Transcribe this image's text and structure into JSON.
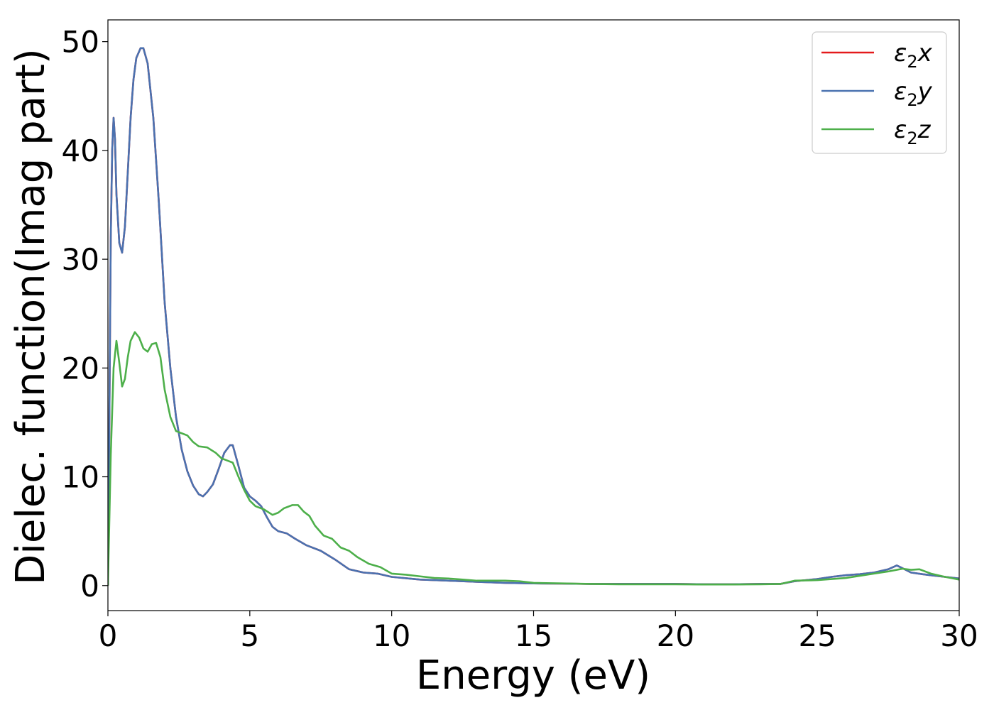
{
  "chart_data": {
    "type": "line",
    "xlabel": "Energy (eV)",
    "ylabel": "Dielec. function(Imag part)",
    "xlim": [
      0,
      30
    ],
    "ylim": [
      -2.3,
      52
    ],
    "x_ticks": [
      0,
      5,
      10,
      15,
      20,
      25,
      30
    ],
    "y_ticks": [
      0,
      10,
      20,
      30,
      40,
      50
    ],
    "grid": false,
    "legend_position": "top-right",
    "series": [
      {
        "name": "ε2x",
        "legend_base": "ε",
        "legend_sub": "2",
        "legend_var": "x",
        "color": "#e41a1c",
        "points": [
          [
            0,
            0
          ],
          [
            0.05,
            15
          ],
          [
            0.1,
            32
          ],
          [
            0.15,
            40
          ],
          [
            0.2,
            43
          ],
          [
            0.25,
            41
          ],
          [
            0.3,
            36
          ],
          [
            0.4,
            31.5
          ],
          [
            0.5,
            30.6
          ],
          [
            0.6,
            33
          ],
          [
            0.7,
            38
          ],
          [
            0.8,
            43
          ],
          [
            0.9,
            46.5
          ],
          [
            1.0,
            48.5
          ],
          [
            1.15,
            49.4
          ],
          [
            1.25,
            49.4
          ],
          [
            1.4,
            48
          ],
          [
            1.6,
            43
          ],
          [
            1.8,
            35
          ],
          [
            2.0,
            26
          ],
          [
            2.2,
            20
          ],
          [
            2.4,
            15.5
          ],
          [
            2.6,
            12.5
          ],
          [
            2.8,
            10.5
          ],
          [
            3.0,
            9.2
          ],
          [
            3.2,
            8.4
          ],
          [
            3.35,
            8.2
          ],
          [
            3.5,
            8.6
          ],
          [
            3.7,
            9.3
          ],
          [
            3.9,
            10.7
          ],
          [
            4.1,
            12.2
          ],
          [
            4.3,
            12.9
          ],
          [
            4.4,
            12.9
          ],
          [
            4.6,
            11
          ],
          [
            4.8,
            9
          ],
          [
            5.0,
            8.2
          ],
          [
            5.2,
            7.8
          ],
          [
            5.4,
            7.3
          ],
          [
            5.6,
            6.3
          ],
          [
            5.8,
            5.4
          ],
          [
            6.0,
            5.0
          ],
          [
            6.3,
            4.8
          ],
          [
            6.6,
            4.3
          ],
          [
            7.0,
            3.7
          ],
          [
            7.5,
            3.2
          ],
          [
            8.0,
            2.4
          ],
          [
            8.5,
            1.5
          ],
          [
            9.0,
            1.2
          ],
          [
            9.5,
            1.1
          ],
          [
            10.0,
            0.8
          ],
          [
            11,
            0.55
          ],
          [
            12,
            0.45
          ],
          [
            13,
            0.35
          ],
          [
            14,
            0.25
          ],
          [
            15,
            0.2
          ],
          [
            16,
            0.18
          ],
          [
            17,
            0.15
          ],
          [
            18,
            0.15
          ],
          [
            19,
            0.15
          ],
          [
            20,
            0.15
          ],
          [
            21,
            0.12
          ],
          [
            22,
            0.12
          ],
          [
            23,
            0.15
          ],
          [
            23.7,
            0.15
          ],
          [
            24.2,
            0.4
          ],
          [
            25,
            0.6
          ],
          [
            25.5,
            0.8
          ],
          [
            26,
            0.95
          ],
          [
            26.5,
            1.05
          ],
          [
            27,
            1.2
          ],
          [
            27.5,
            1.5
          ],
          [
            27.8,
            1.85
          ],
          [
            28,
            1.6
          ],
          [
            28.3,
            1.2
          ],
          [
            28.7,
            1.05
          ],
          [
            29,
            0.95
          ],
          [
            29.5,
            0.8
          ],
          [
            30,
            0.65
          ]
        ]
      },
      {
        "name": "ε2y",
        "legend_base": "ε",
        "legend_sub": "2",
        "legend_var": "y",
        "color": "#4a72b0",
        "points": [
          [
            0,
            0
          ],
          [
            0.05,
            15
          ],
          [
            0.1,
            32
          ],
          [
            0.15,
            40
          ],
          [
            0.2,
            43
          ],
          [
            0.25,
            41
          ],
          [
            0.3,
            36
          ],
          [
            0.4,
            31.5
          ],
          [
            0.5,
            30.6
          ],
          [
            0.6,
            33
          ],
          [
            0.7,
            38
          ],
          [
            0.8,
            43
          ],
          [
            0.9,
            46.5
          ],
          [
            1.0,
            48.5
          ],
          [
            1.15,
            49.4
          ],
          [
            1.25,
            49.4
          ],
          [
            1.4,
            48
          ],
          [
            1.6,
            43
          ],
          [
            1.8,
            35
          ],
          [
            2.0,
            26
          ],
          [
            2.2,
            20
          ],
          [
            2.4,
            15.5
          ],
          [
            2.6,
            12.5
          ],
          [
            2.8,
            10.5
          ],
          [
            3.0,
            9.2
          ],
          [
            3.2,
            8.4
          ],
          [
            3.35,
            8.2
          ],
          [
            3.5,
            8.6
          ],
          [
            3.7,
            9.3
          ],
          [
            3.9,
            10.7
          ],
          [
            4.1,
            12.2
          ],
          [
            4.3,
            12.9
          ],
          [
            4.4,
            12.9
          ],
          [
            4.6,
            11
          ],
          [
            4.8,
            9
          ],
          [
            5.0,
            8.2
          ],
          [
            5.2,
            7.8
          ],
          [
            5.4,
            7.3
          ],
          [
            5.6,
            6.3
          ],
          [
            5.8,
            5.4
          ],
          [
            6.0,
            5.0
          ],
          [
            6.3,
            4.8
          ],
          [
            6.6,
            4.3
          ],
          [
            7.0,
            3.7
          ],
          [
            7.5,
            3.2
          ],
          [
            8.0,
            2.4
          ],
          [
            8.5,
            1.5
          ],
          [
            9.0,
            1.2
          ],
          [
            9.5,
            1.1
          ],
          [
            10.0,
            0.8
          ],
          [
            11,
            0.55
          ],
          [
            12,
            0.45
          ],
          [
            13,
            0.35
          ],
          [
            14,
            0.25
          ],
          [
            15,
            0.2
          ],
          [
            16,
            0.18
          ],
          [
            17,
            0.15
          ],
          [
            18,
            0.15
          ],
          [
            19,
            0.15
          ],
          [
            20,
            0.15
          ],
          [
            21,
            0.12
          ],
          [
            22,
            0.12
          ],
          [
            23,
            0.15
          ],
          [
            23.7,
            0.15
          ],
          [
            24.2,
            0.4
          ],
          [
            25,
            0.6
          ],
          [
            25.5,
            0.8
          ],
          [
            26,
            0.95
          ],
          [
            26.5,
            1.05
          ],
          [
            27,
            1.2
          ],
          [
            27.5,
            1.5
          ],
          [
            27.8,
            1.85
          ],
          [
            28,
            1.6
          ],
          [
            28.3,
            1.2
          ],
          [
            28.7,
            1.05
          ],
          [
            29,
            0.95
          ],
          [
            29.5,
            0.8
          ],
          [
            30,
            0.65
          ]
        ]
      },
      {
        "name": "ε2z",
        "legend_base": "ε",
        "legend_sub": "2",
        "legend_var": "z",
        "color": "#4daf4a",
        "points": [
          [
            0,
            0
          ],
          [
            0.1,
            12
          ],
          [
            0.2,
            20
          ],
          [
            0.3,
            22.5
          ],
          [
            0.4,
            20.5
          ],
          [
            0.5,
            18.3
          ],
          [
            0.6,
            19
          ],
          [
            0.7,
            21
          ],
          [
            0.8,
            22.5
          ],
          [
            0.95,
            23.3
          ],
          [
            1.1,
            22.8
          ],
          [
            1.25,
            21.8
          ],
          [
            1.4,
            21.5
          ],
          [
            1.55,
            22.2
          ],
          [
            1.7,
            22.3
          ],
          [
            1.85,
            21
          ],
          [
            2.0,
            18
          ],
          [
            2.2,
            15.5
          ],
          [
            2.4,
            14.2
          ],
          [
            2.6,
            14.0
          ],
          [
            2.8,
            13.8
          ],
          [
            3.0,
            13.2
          ],
          [
            3.2,
            12.8
          ],
          [
            3.5,
            12.7
          ],
          [
            3.8,
            12.2
          ],
          [
            4.0,
            11.7
          ],
          [
            4.2,
            11.5
          ],
          [
            4.4,
            11.3
          ],
          [
            4.6,
            10
          ],
          [
            4.8,
            8.8
          ],
          [
            5.0,
            7.8
          ],
          [
            5.2,
            7.3
          ],
          [
            5.5,
            7.0
          ],
          [
            5.8,
            6.5
          ],
          [
            6.0,
            6.7
          ],
          [
            6.2,
            7.1
          ],
          [
            6.5,
            7.4
          ],
          [
            6.7,
            7.4
          ],
          [
            6.9,
            6.8
          ],
          [
            7.1,
            6.4
          ],
          [
            7.3,
            5.5
          ],
          [
            7.6,
            4.6
          ],
          [
            7.9,
            4.3
          ],
          [
            8.2,
            3.5
          ],
          [
            8.5,
            3.2
          ],
          [
            8.8,
            2.6
          ],
          [
            9.2,
            2.0
          ],
          [
            9.6,
            1.7
          ],
          [
            10.0,
            1.1
          ],
          [
            10.5,
            1.0
          ],
          [
            11,
            0.85
          ],
          [
            11.5,
            0.7
          ],
          [
            12,
            0.65
          ],
          [
            12.5,
            0.55
          ],
          [
            13,
            0.45
          ],
          [
            14,
            0.45
          ],
          [
            14.5,
            0.4
          ],
          [
            15,
            0.25
          ],
          [
            16,
            0.2
          ],
          [
            17,
            0.15
          ],
          [
            18,
            0.12
          ],
          [
            19,
            0.12
          ],
          [
            20,
            0.12
          ],
          [
            21,
            0.1
          ],
          [
            22,
            0.1
          ],
          [
            23,
            0.12
          ],
          [
            23.7,
            0.15
          ],
          [
            24.2,
            0.45
          ],
          [
            25,
            0.5
          ],
          [
            26,
            0.7
          ],
          [
            26.5,
            0.9
          ],
          [
            27,
            1.1
          ],
          [
            27.5,
            1.3
          ],
          [
            28,
            1.55
          ],
          [
            28.3,
            1.45
          ],
          [
            28.6,
            1.5
          ],
          [
            29,
            1.1
          ],
          [
            29.5,
            0.8
          ],
          [
            30,
            0.55
          ]
        ]
      }
    ]
  }
}
